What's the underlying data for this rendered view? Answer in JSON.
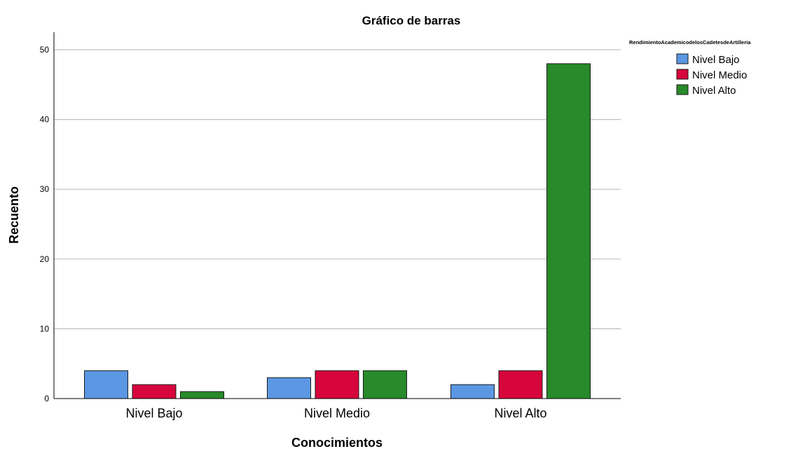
{
  "chart_data": {
    "type": "bar",
    "title": "Gráfico de barras",
    "xlabel": "Conocimientos",
    "ylabel": "Recuento",
    "categories": [
      "Nivel Bajo",
      "Nivel Medio",
      "Nivel Alto"
    ],
    "legend_title": "RendimientoAcademicodelosCadetesdeArtilleria",
    "legend_position": "top-right",
    "ylim": [
      0,
      52
    ],
    "yticks": [
      0,
      10,
      20,
      30,
      40,
      50
    ],
    "grid": true,
    "series": [
      {
        "name": "Nivel Bajo",
        "color": "#5b97e3",
        "values": [
          4,
          3,
          2
        ]
      },
      {
        "name": "Nivel Medio",
        "color": "#d6053b",
        "values": [
          2,
          4,
          4
        ]
      },
      {
        "name": "Nivel Alto",
        "color": "#288a2a",
        "values": [
          1,
          4,
          48
        ]
      }
    ]
  }
}
